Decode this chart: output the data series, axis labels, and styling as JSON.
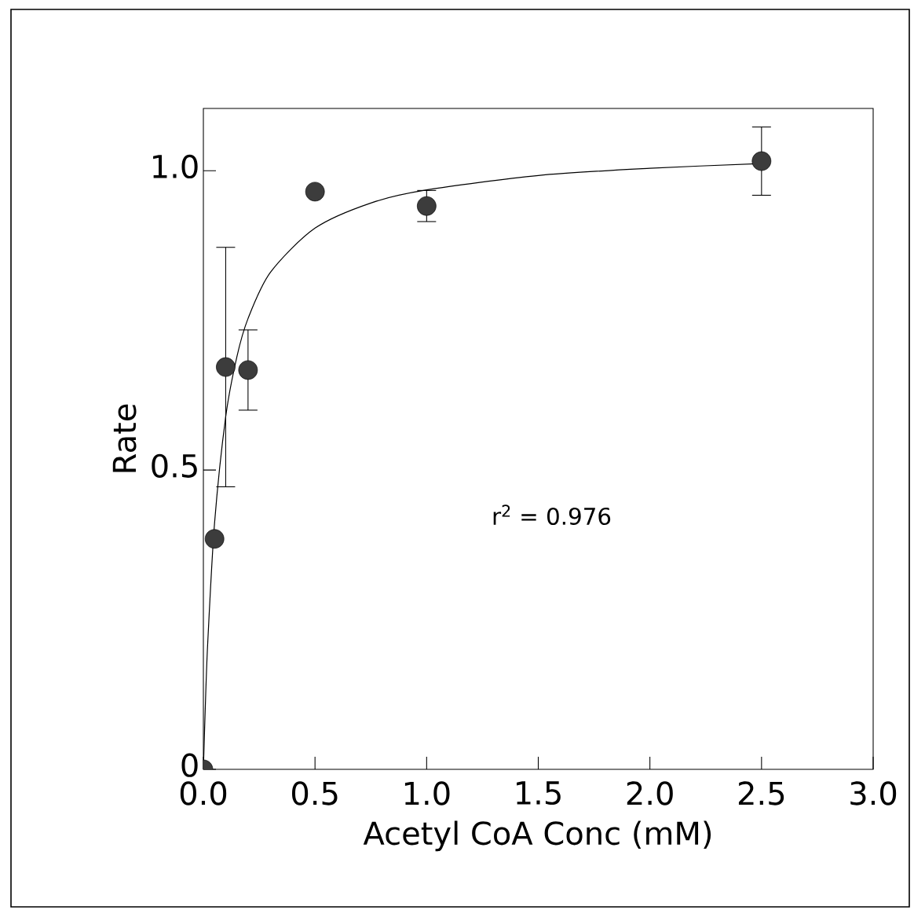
{
  "chart_data": {
    "type": "scatter",
    "xlabel": "Acetyl CoA Conc  (mM)",
    "ylabel": "Rate",
    "xlim": [
      0,
      3.0
    ],
    "ylim": [
      0,
      1.104
    ],
    "xticks": [
      {
        "value": 0,
        "label": "0.0"
      },
      {
        "value": 0.5,
        "label": "0.5"
      },
      {
        "value": 1.0,
        "label": "1.0"
      },
      {
        "value": 1.5,
        "label": "1.5"
      },
      {
        "value": 2.0,
        "label": "2.0"
      },
      {
        "value": 2.5,
        "label": "2.5"
      },
      {
        "value": 3.0,
        "label": "3.0"
      }
    ],
    "yticks": [
      {
        "value": 0,
        "label": "0"
      },
      {
        "value": 0.5,
        "label": "0.5"
      },
      {
        "value": 1.0,
        "label": "1.0"
      }
    ],
    "annotations": [
      "r$^{2}$ = 0.976"
    ],
    "grid": false,
    "series": [
      {
        "type": "line",
        "color": "#000000",
        "marker": "none",
        "line_style": "solid",
        "x": [
          0,
          0.01,
          0.02,
          0.05,
          0.1,
          0.15,
          0.2,
          0.3,
          0.5,
          0.75,
          1.0,
          1.5,
          2.0,
          2.5
        ],
        "values": [
          0,
          0.12,
          0.215,
          0.411,
          0.589,
          0.689,
          0.753,
          0.83,
          0.904,
          0.946,
          0.968,
          0.992,
          1.004,
          1.012
        ]
      },
      {
        "color": "#3c3c3c",
        "marker": "circle",
        "x": [
          0,
          0.05,
          0.1,
          0.2,
          0.5,
          1.0,
          2.5
        ],
        "values": [
          0,
          0.385,
          0.672,
          0.667,
          0.965,
          0.941,
          1.016
        ],
        "errors": [
          null,
          null,
          0.2,
          0.067,
          null,
          0.026,
          0.057
        ]
      }
    ]
  }
}
